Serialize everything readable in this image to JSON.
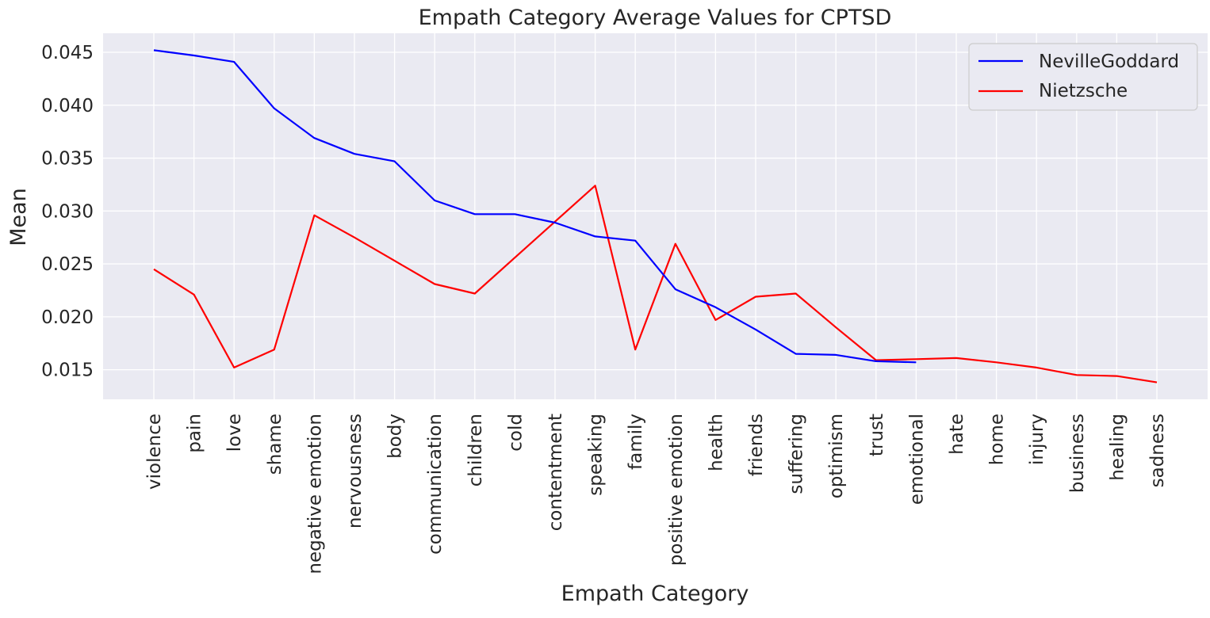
{
  "chart_data": {
    "type": "line",
    "title": "Empath Category Average Values for CPTSD",
    "xlabel": "Empath Category",
    "ylabel": "Mean",
    "categories": [
      "violence",
      "pain",
      "love",
      "shame",
      "negative emotion",
      "nervousness",
      "body",
      "communication",
      "children",
      "cold",
      "contentment",
      "speaking",
      "family",
      "positive emotion",
      "health",
      "friends",
      "suffering",
      "optimism",
      "trust",
      "emotional",
      "hate",
      "home",
      "injury",
      "business",
      "healing",
      "sadness"
    ],
    "ylim": [
      0.0122,
      0.0468
    ],
    "yticks": [
      "0.015",
      "0.020",
      "0.025",
      "0.030",
      "0.035",
      "0.040",
      "0.045"
    ],
    "grid": true,
    "legend_position": "top-right",
    "series": [
      {
        "name": "NevilleGoddard",
        "color": "#0000ff",
        "values": [
          0.0452,
          0.0447,
          0.0441,
          0.0397,
          0.0369,
          0.0354,
          0.0347,
          0.031,
          0.0297,
          0.0297,
          0.0289,
          0.0276,
          0.0272,
          0.0226,
          0.0209,
          0.0188,
          0.0165,
          0.0164,
          0.0158,
          0.0157,
          null,
          null,
          null,
          null,
          null,
          null
        ]
      },
      {
        "name": "Nietzsche",
        "color": "#ff0000",
        "values": [
          0.0245,
          0.0221,
          0.0152,
          0.0169,
          0.0296,
          0.0275,
          0.0253,
          0.0231,
          0.0222,
          0.0256,
          0.029,
          0.0324,
          0.0169,
          0.0269,
          0.0197,
          0.0219,
          0.0222,
          0.019,
          0.0159,
          0.016,
          0.0161,
          0.0157,
          0.0152,
          0.0145,
          0.0144,
          0.0138
        ]
      }
    ]
  }
}
